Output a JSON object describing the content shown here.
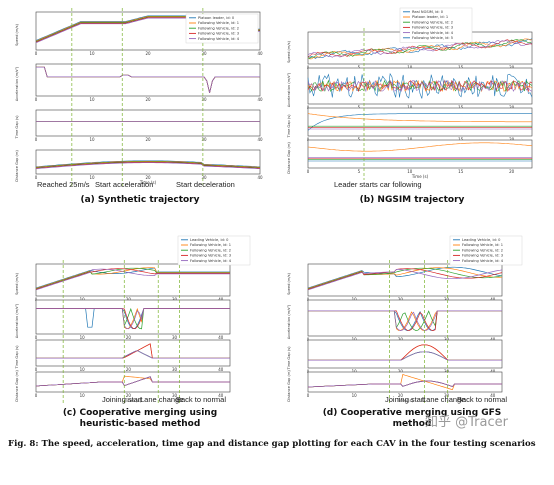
{
  "colors": {
    "c0": "#1f77b4",
    "c1": "#ff7f0e",
    "c2": "#2ca02c",
    "c3": "#d62728",
    "c4": "#9467bd",
    "vline": "#7ab32e"
  },
  "panels": [
    {
      "id": "a",
      "legend": [
        "Platoon leader, id: 0",
        "Following Vehicle, id: 1",
        "Following Vehicle, id: 2",
        "Following Vehicle, id: 3",
        "Following Vehicle, id: 4"
      ],
      "ylabels": [
        "Speed (m/s)",
        "Acceleration (m/s²)",
        "Time Gap (s)",
        "Distance Gap (m)"
      ],
      "xticks": [
        "0",
        "10",
        "20",
        "30",
        "40"
      ],
      "xlabel": "Time (s)",
      "annotations": [
        "Reached 25m/s",
        "Start acceleration",
        "Start deceleration"
      ],
      "caption": "(a) Synthetic trajectory"
    },
    {
      "id": "b",
      "legend": [
        "Real NGSIM, id: 0",
        "Platoon leader, id: 1",
        "Following Vehicle, id: 2",
        "Following Vehicle, id: 3",
        "Following Vehicle, id: 4",
        "Following Vehicle, id: 5"
      ],
      "ylabels": [
        "Speed (m/s)",
        "Acceleration (m/s²)",
        "Time Gap (s)",
        "Distance Gap (m)"
      ],
      "xticks": [
        "0",
        "5",
        "10",
        "15",
        "20"
      ],
      "xlabel": "Time (s)",
      "annotations": [
        "Leader starts car following"
      ],
      "caption": "(b) NGSIM trajectory"
    },
    {
      "id": "c",
      "legend": [
        "Leading Vehicle, id: 0",
        "Following Vehicle, id: 1",
        "Following Vehicle, id: 2",
        "Following Vehicle, id: 3",
        "Following Vehicle, id: 4"
      ],
      "ylabels": [
        "Speed (m/s)",
        "Acceleration (m/s²)",
        "Time Gap (s)",
        "Distance Gap (m)"
      ],
      "xticks": [
        "0",
        "10",
        "20",
        "30",
        "40"
      ],
      "xlabel": "Time (s)",
      "annotations": [
        "Joining start",
        "Lane change",
        "Back to normal"
      ],
      "caption": "(c) Cooperative merging using heuristic-based method"
    },
    {
      "id": "d",
      "legend": [
        "Leading Vehicle, id: 0",
        "Following Vehicle, id: 1",
        "Following Vehicle, id: 2",
        "Following Vehicle, id: 3",
        "Following Vehicle, id: 4"
      ],
      "ylabels": [
        "Speed (m/s)",
        "Acceleration (m/s²)",
        "Time Gap (s)",
        "Distance Gap (m)"
      ],
      "xticks": [
        "0",
        "10",
        "20",
        "30",
        "40"
      ],
      "xlabel": "Time (s)",
      "annotations": [
        "Joining start",
        "Lane change",
        "Back to normal"
      ],
      "caption": "(d) Cooperative merging using GFS method"
    }
  ],
  "figure_caption": "Fig. 8: The speed, acceleration, time gap and distance gap plotting for each CAV in the four testing scenarios",
  "watermark": "知乎 @Tracer"
}
